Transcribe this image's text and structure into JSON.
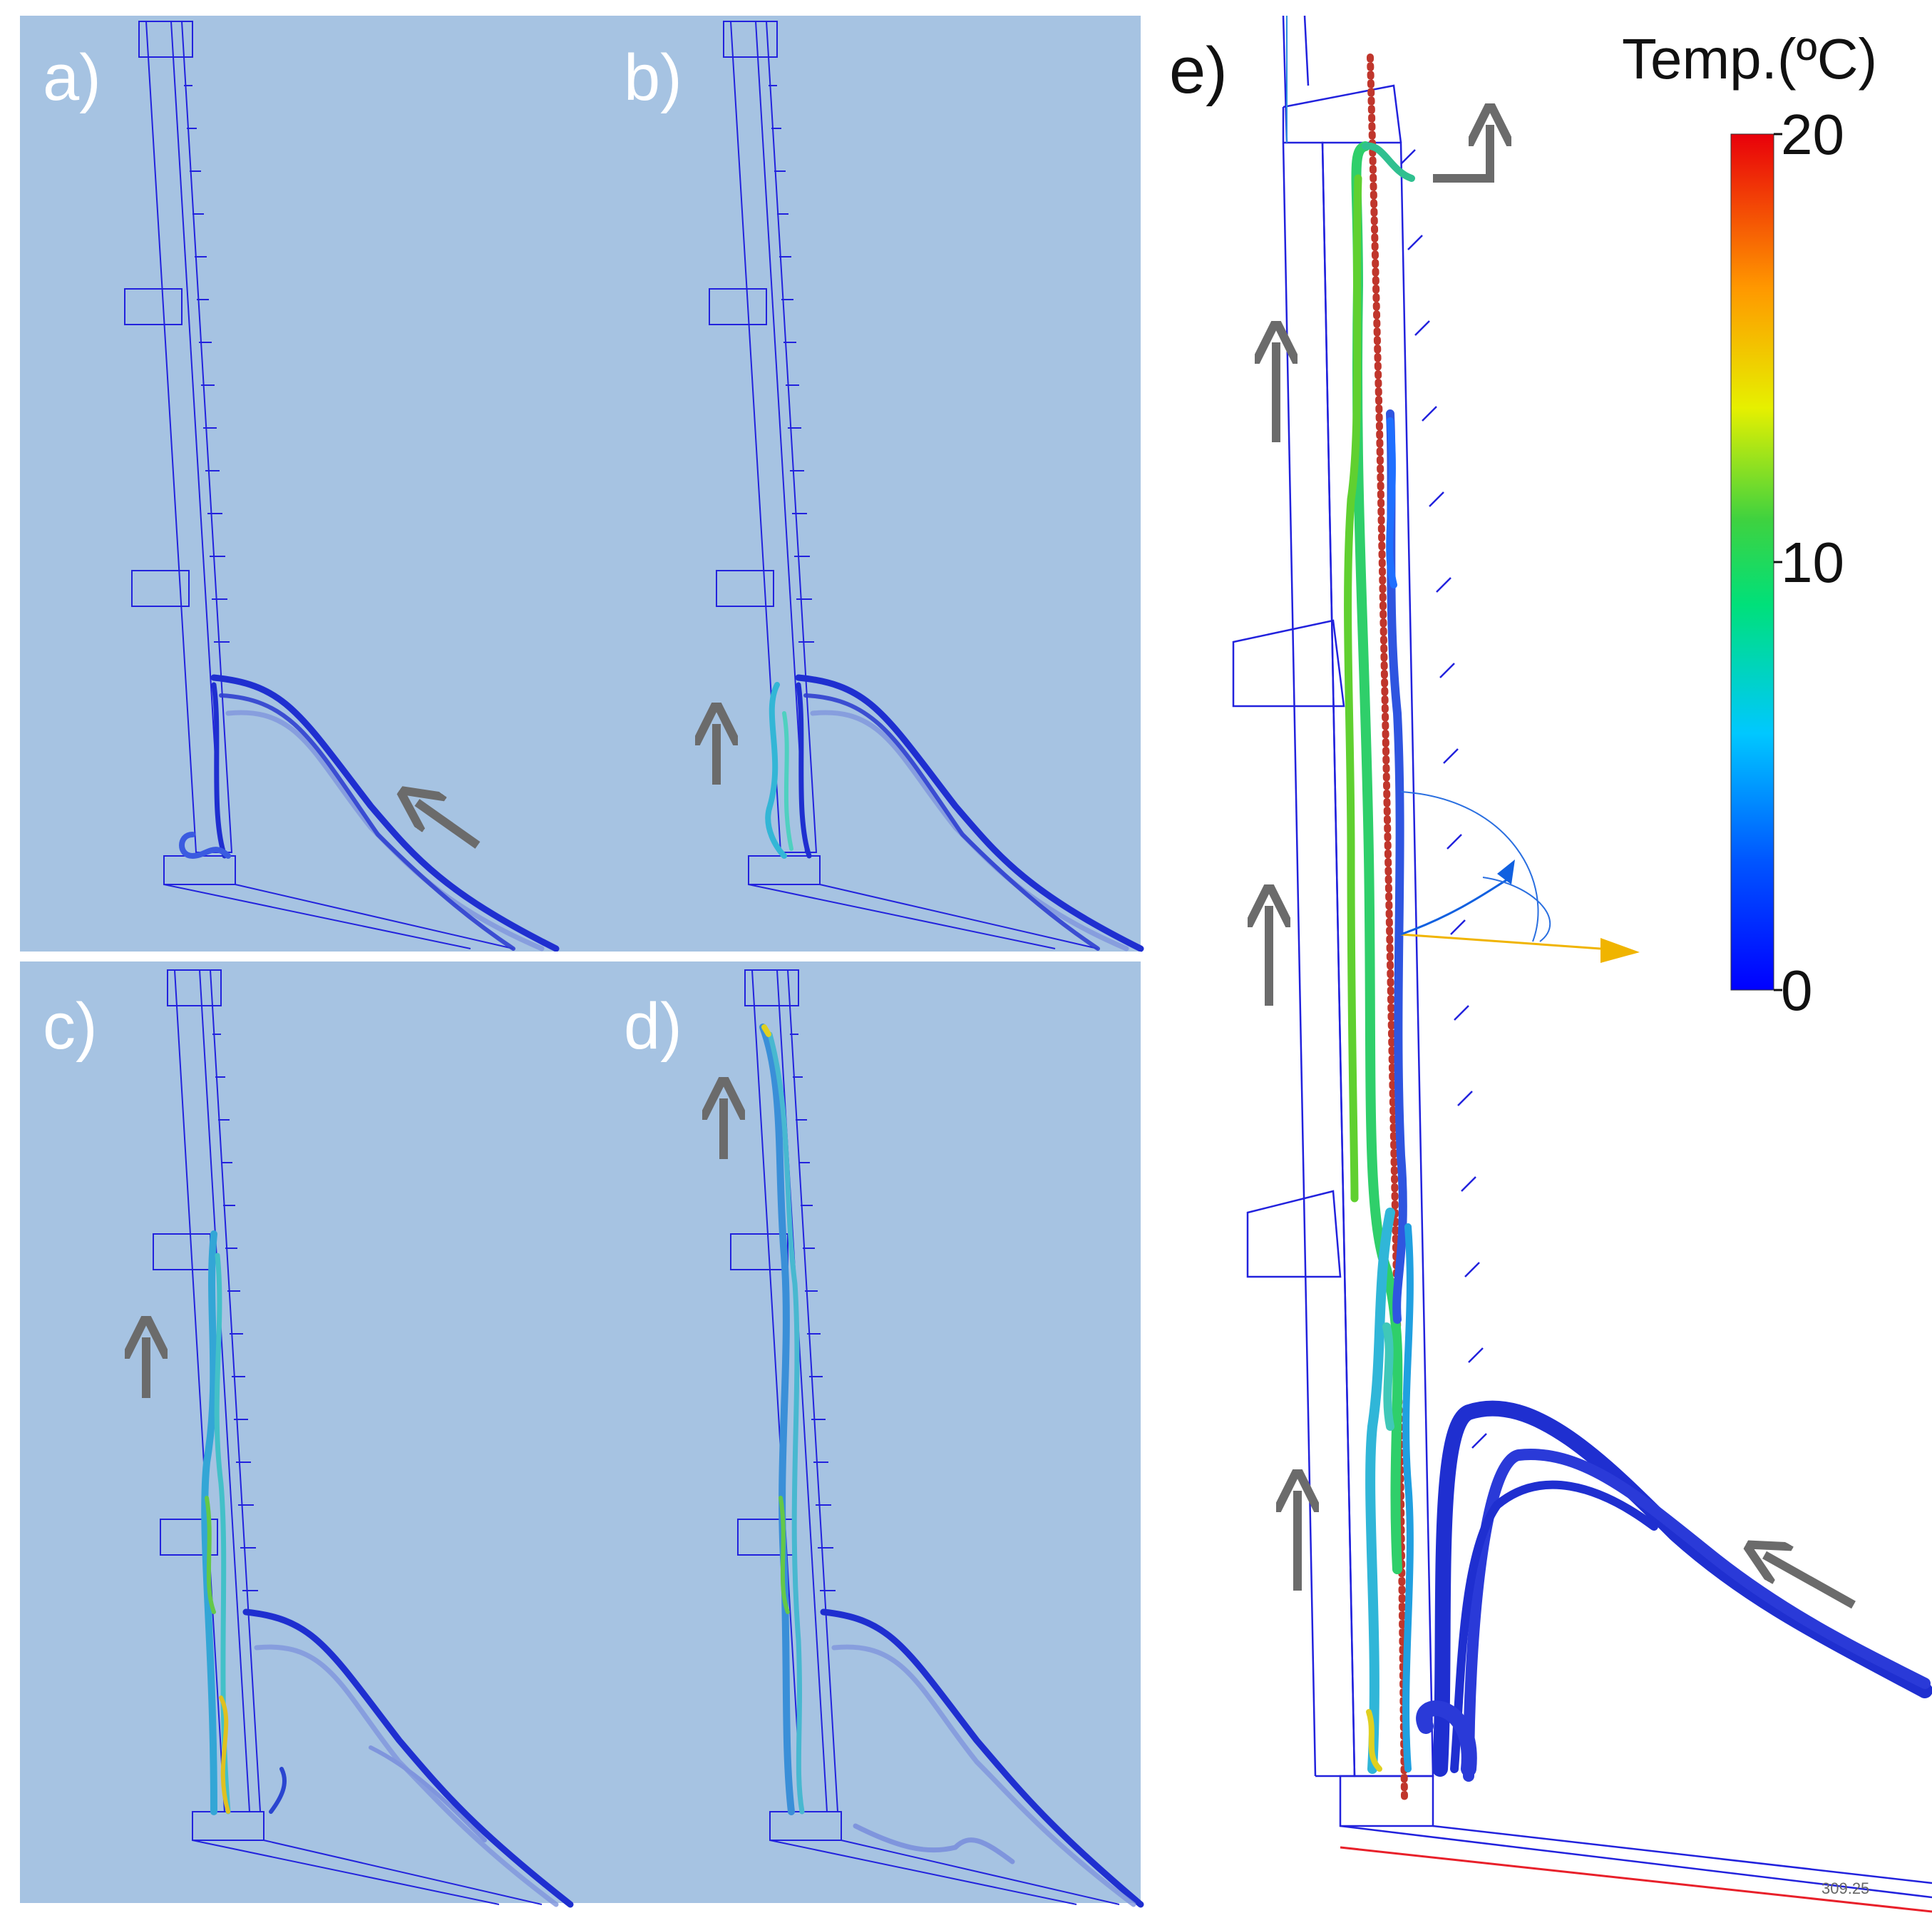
{
  "figure": {
    "panels": [
      {
        "id": "a",
        "label": "a)"
      },
      {
        "id": "b",
        "label": "b)"
      },
      {
        "id": "c",
        "label": "c)"
      },
      {
        "id": "d",
        "label": "d)"
      },
      {
        "id": "e",
        "label": "e)"
      }
    ],
    "colorbar": {
      "title": "Temp.(ºC)",
      "min": 0,
      "max": 20,
      "ticks": [
        {
          "value": 20,
          "label": "20"
        },
        {
          "value": 10,
          "label": "10"
        },
        {
          "value": 0,
          "label": "0"
        }
      ],
      "stops": [
        {
          "t": 0.0,
          "color": "#0000ff"
        },
        {
          "t": 0.15,
          "color": "#0055ff"
        },
        {
          "t": 0.3,
          "color": "#00c8ff"
        },
        {
          "t": 0.45,
          "color": "#00e07a"
        },
        {
          "t": 0.55,
          "color": "#3fd23f"
        },
        {
          "t": 0.68,
          "color": "#e6f000"
        },
        {
          "t": 0.82,
          "color": "#ff9800"
        },
        {
          "t": 1.0,
          "color": "#e8000a"
        }
      ]
    },
    "coordinate_readout": "309.25",
    "colors": {
      "panel_background": "#a6c3e2",
      "panel_label": "#ffffff",
      "arrow": "#6b6b6b",
      "wireframe": "#2222dd",
      "cold_stream": "#1f2fd0",
      "probe_line": "#c0362c"
    }
  }
}
